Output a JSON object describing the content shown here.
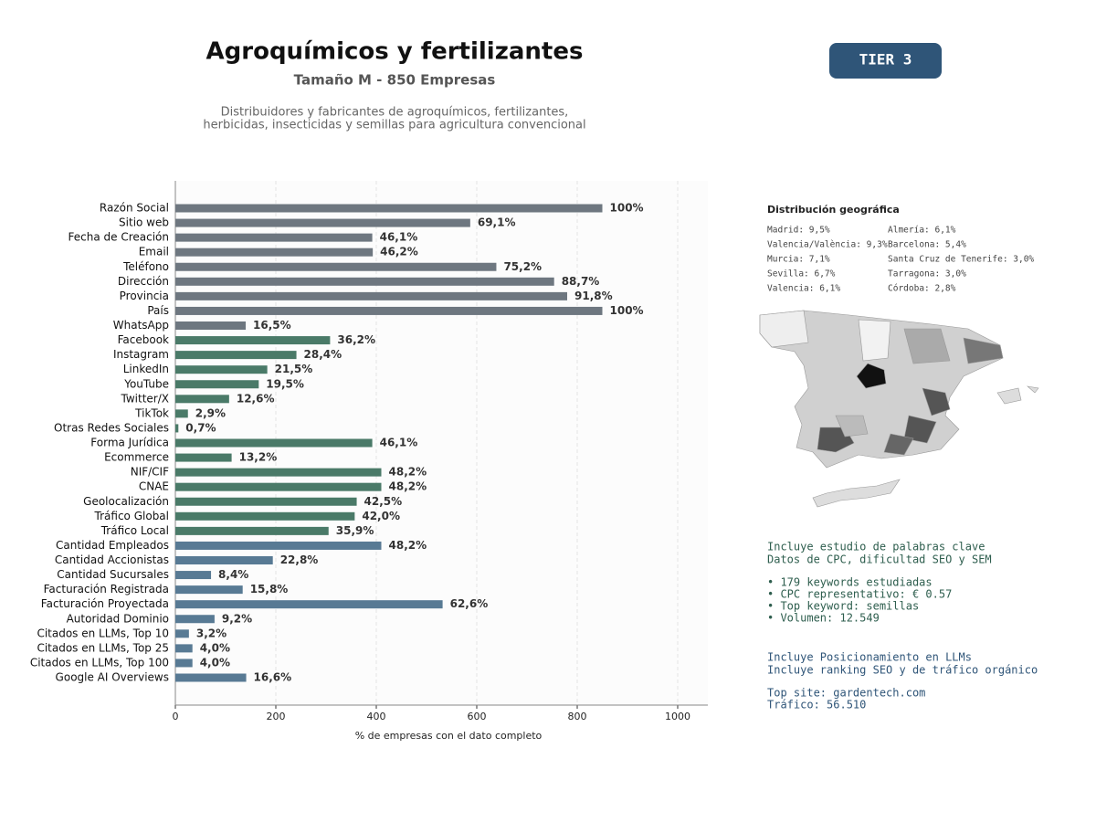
{
  "header": {
    "title": "Agroquímicos y fertilizantes",
    "subtitle": "Tamaño M - 850 Empresas",
    "description": [
      "Distribuidores y fabricantes de agroquímicos, fertilizantes,",
      "herbicidas, insecticidas y semillas para agricultura convencional"
    ],
    "badge": "TIER 3"
  },
  "chart_data": {
    "type": "barh",
    "xlabel": "% de empresas con el dato completo",
    "categories": [
      "Razón Social",
      "Sitio web",
      "Fecha de Creación",
      "Email",
      "Teléfono",
      "Dirección",
      "Provincia",
      "País",
      "WhatsApp",
      "Facebook",
      "Instagram",
      "LinkedIn",
      "YouTube",
      "Twitter/X",
      "TikTok",
      "Otras Redes Sociales",
      "Forma Jurídica",
      "Ecommerce",
      "NIF/CIF",
      "CNAE",
      "Geolocalización",
      "Tráfico Global",
      "Tráfico Local",
      "Cantidad Empleados",
      "Cantidad Accionistas",
      "Cantidad Sucursales",
      "Facturación Registrada",
      "Facturación Proyectada",
      "Autoridad Dominio",
      "Citados en LLMs, Top 10",
      "Citados en LLMs, Top 25",
      "Citados en LLMs, Top 100",
      "Google AI Overviews"
    ],
    "values": [
      850,
      587,
      392,
      393,
      639,
      754,
      780,
      850,
      140,
      308,
      241,
      183,
      166,
      107,
      25,
      6,
      392,
      112,
      410,
      410,
      361,
      357,
      305,
      410,
      194,
      71,
      134,
      532,
      78,
      27,
      34,
      34,
      141
    ],
    "value_labels": [
      "100%",
      "69,1%",
      "46,1%",
      "46,2%",
      "75,2%",
      "88,7%",
      "91,8%",
      "100%",
      "16,5%",
      "36,2%",
      "28,4%",
      "21,5%",
      "19,5%",
      "12,6%",
      "2,9%",
      "0,7%",
      "46,1%",
      "13,2%",
      "48,2%",
      "48,2%",
      "42,5%",
      "42,0%",
      "35,9%",
      "48,2%",
      "22,8%",
      "8,4%",
      "15,8%",
      "62,6%",
      "9,2%",
      "3,2%",
      "4,0%",
      "4,0%",
      "16,6%"
    ],
    "colors": [
      "#6e7780",
      "#6e7780",
      "#6e7780",
      "#6e7780",
      "#6e7780",
      "#6e7780",
      "#6e7780",
      "#6e7780",
      "#6e7780",
      "#4a7a68",
      "#4a7a68",
      "#4a7a68",
      "#4a7a68",
      "#4a7a68",
      "#4a7a68",
      "#4a7a68",
      "#4a7a68",
      "#4a7a68",
      "#4a7a68",
      "#4a7a68",
      "#4a7a68",
      "#4a7a68",
      "#4a7a68",
      "#587a94",
      "#587a94",
      "#587a94",
      "#587a94",
      "#587a94",
      "#587a94",
      "#587a94",
      "#587a94",
      "#587a94",
      "#587a94"
    ],
    "xlim": [
      0,
      1060
    ],
    "xticks": [
      0,
      200,
      400,
      600,
      800,
      1000
    ],
    "grid": true
  },
  "geo": {
    "title": "Distribución geográfica",
    "left": [
      "Madrid: 9,5%",
      "Valencia/València: 9,3%",
      "Murcia: 7,1%",
      "Sevilla: 6,7%",
      "Valencia: 6,1%"
    ],
    "right": [
      "Almería: 6,1%",
      "Barcelona: 5,4%",
      "Santa Cruz de Tenerife: 3,0%",
      "Tarragona: 3,0%",
      "Córdoba: 2,8%"
    ]
  },
  "keywords": [
    "Incluye estudio de palabras clave",
    "Datos de CPC, dificultad SEO y SEM",
    "• 179 keywords estudiadas",
    "• CPC representativo: € 0.57",
    "• Top keyword: semillas",
    "• Volumen: 12.549"
  ],
  "llm": [
    "Incluye Posicionamiento en LLMs",
    "Incluye ranking SEO y de tráfico orgánico",
    "Top site: gardentech.com",
    "Tráfico: 56.510"
  ]
}
